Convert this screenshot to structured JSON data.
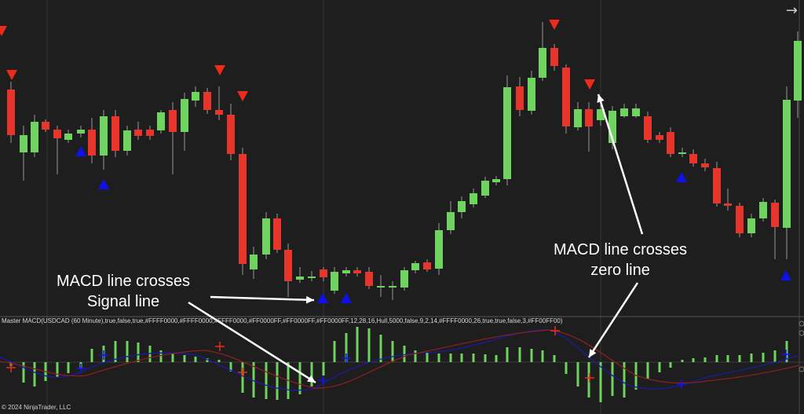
{
  "app": {
    "indicator_label": "Master MACD(USDCAD (60 Minute),true,false,true,#FFFF0000,#FFFF0000,#FFFF0000,#FF0000FF,#FF0000FF,#FF0000FF,12,28,16,Hull,5000,false,9,2,14,#FFFF0000,26,true,true,false,3,#FF00FF00)",
    "copyright": "© 2024 NinjaTrader, LLC",
    "nav_icon": "arrow-right-icon"
  },
  "annotations": {
    "signal": [
      "MACD line crosses",
      "Signal line"
    ],
    "zero": [
      "MACD line crosses",
      "zero line"
    ]
  },
  "colors": {
    "background": "#1e1e1e",
    "up": "#6fd35f",
    "down": "#e8352b",
    "signal_up": "#1010ee",
    "signal_down": "#ee2a1a",
    "grid": "#353535",
    "macd_line": "#1a1aa0",
    "signal_line": "#8a1f1f"
  }
}
